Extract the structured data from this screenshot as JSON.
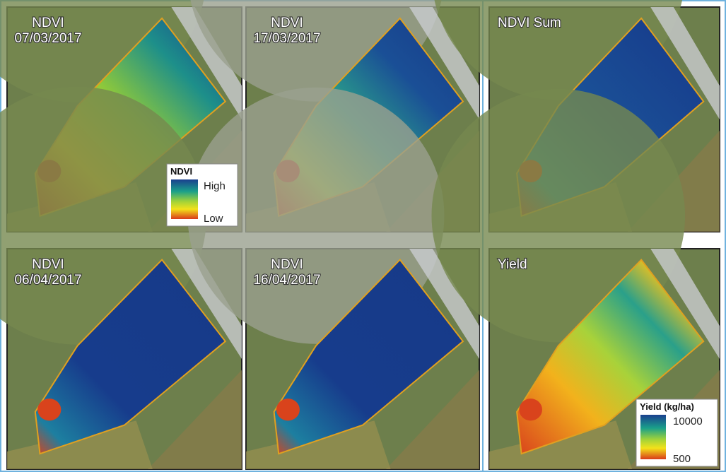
{
  "panels": [
    {
      "label": [
        "NDVI",
        "07/03/2017"
      ]
    },
    {
      "label": [
        "NDVI",
        "17/03/2017"
      ]
    },
    {
      "label": [
        "NDVI Sum"
      ]
    },
    {
      "label": [
        "NDVI",
        "06/04/2017"
      ]
    },
    {
      "label": [
        "NDVI",
        "16/04/2017"
      ]
    },
    {
      "label": [
        "Yield"
      ]
    }
  ],
  "legends": [
    {
      "title": "NDVI",
      "high": "High",
      "low": "Low"
    },
    {
      "title": "Yield (kg/ha)",
      "high": "10000",
      "low": "500"
    }
  ]
}
